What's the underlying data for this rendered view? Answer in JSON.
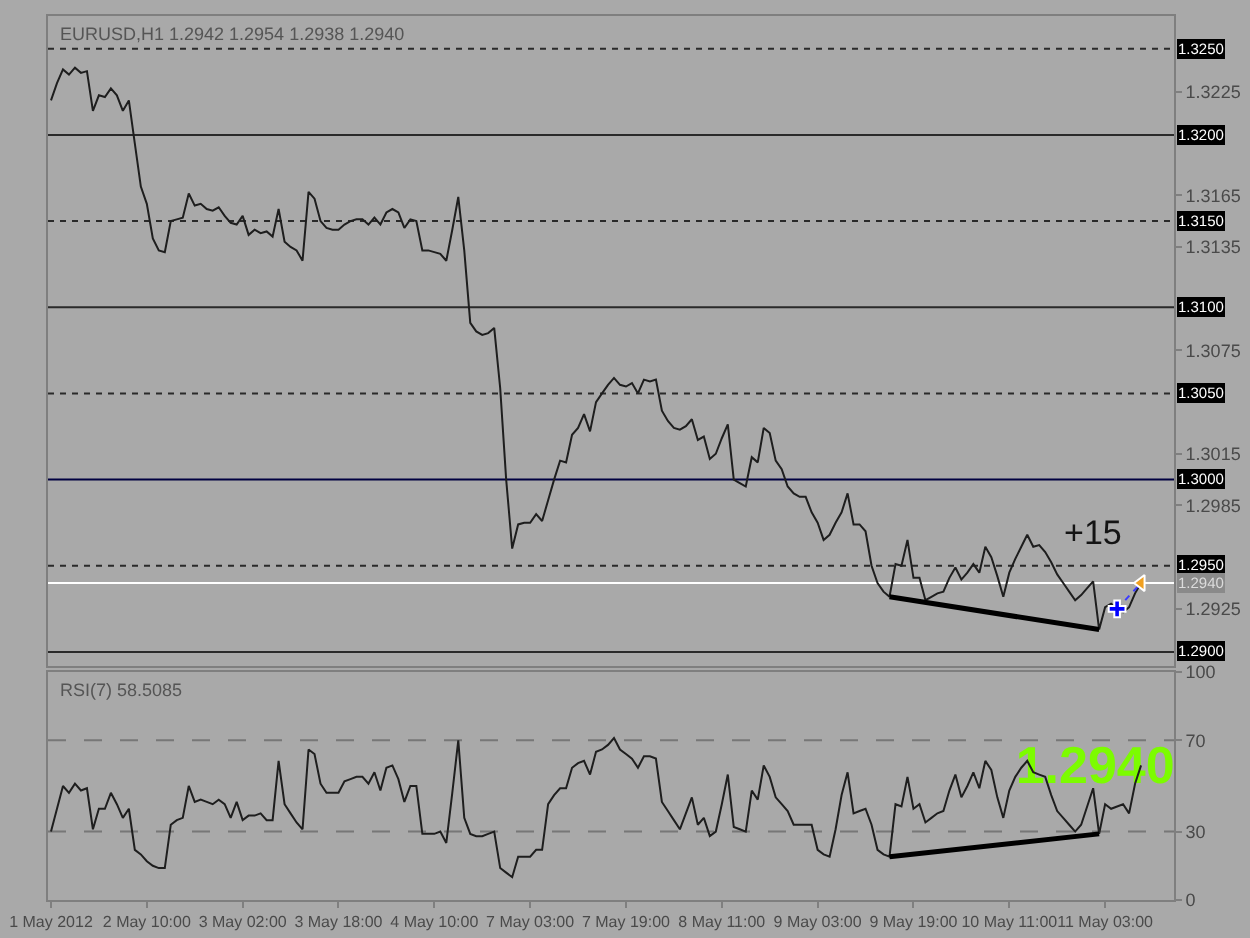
{
  "chart_data": [
    {
      "type": "line",
      "title": "EURUSD,H1 1.2942 1.2954 1.2938 1.2940",
      "ylim": [
        1.2892,
        1.3269
      ],
      "yticks": [
        1.3225,
        1.3165,
        1.3135,
        1.3075,
        1.3015,
        1.2985,
        1.2925
      ],
      "tick_labels": "y",
      "categories": [
        null,
        null,
        null,
        null,
        null,
        null,
        null,
        null,
        null,
        null,
        null,
        null,
        null,
        null,
        null,
        null,
        null,
        null,
        null,
        null,
        null,
        null,
        null,
        null,
        null,
        null,
        null,
        null,
        null,
        null,
        null,
        null,
        null,
        null,
        null,
        null,
        null,
        null,
        null,
        null,
        null,
        null,
        null,
        null,
        null,
        null,
        null,
        null,
        null,
        null,
        null,
        null,
        null,
        null,
        null,
        null,
        null,
        null,
        null,
        null,
        null,
        null,
        null,
        null,
        null,
        null,
        null,
        null,
        null,
        null,
        null,
        null,
        null,
        null,
        null,
        null,
        null,
        null,
        null,
        null,
        null,
        null,
        null,
        null,
        null,
        null,
        null,
        null,
        null,
        null,
        null,
        null,
        null,
        null,
        null,
        null,
        null,
        null,
        null,
        null,
        null,
        null,
        null,
        null,
        null,
        null,
        null,
        null,
        null,
        null,
        null,
        null,
        null,
        null,
        null,
        null,
        null,
        null,
        null,
        null,
        null,
        null,
        null,
        null,
        null,
        null,
        null,
        null,
        null,
        null,
        null,
        null,
        null,
        null,
        null,
        null,
        null,
        null,
        null,
        null,
        null,
        null,
        null,
        null,
        null,
        null,
        null,
        null,
        null,
        null,
        null,
        null,
        null,
        null,
        null,
        null,
        null,
        null,
        null,
        null,
        null,
        null,
        null,
        null,
        null,
        null,
        null,
        null,
        null,
        null,
        null,
        null,
        null,
        null,
        null,
        null,
        null,
        null,
        null,
        null,
        null,
        null,
        null,
        null,
        null,
        null,
        null,
        null
      ],
      "series": [
        {
          "color": "#1e1e1e",
          "values": [
            1.322,
            1.323,
            1.3238,
            1.3235,
            1.3239,
            1.3236,
            1.3237,
            1.3214,
            1.3223,
            1.3222,
            1.3227,
            1.3223,
            1.3214,
            1.322,
            1.3195,
            1.317,
            1.316,
            1.314,
            1.3133,
            1.3132,
            1.315,
            1.3151,
            1.3152,
            1.3166,
            1.3159,
            1.316,
            1.3157,
            1.3156,
            1.3158,
            1.3153,
            1.3149,
            1.3148,
            1.3153,
            1.3142,
            1.3145,
            1.3143,
            1.3144,
            1.3141,
            1.3157,
            1.3138,
            1.3135,
            1.3133,
            1.3127,
            1.3167,
            1.3163,
            1.315,
            1.3146,
            1.3145,
            1.3145,
            1.3148,
            1.315,
            1.3151,
            1.3151,
            1.3148,
            1.3152,
            1.3148,
            1.3155,
            1.3157,
            1.3155,
            1.3146,
            1.3151,
            1.315,
            1.3133,
            1.3133,
            1.3132,
            1.3131,
            1.3127,
            1.3145,
            1.3164,
            1.3133,
            1.3091,
            1.3086,
            1.3084,
            1.3085,
            1.3088,
            1.3053,
            1.3,
            1.296,
            1.2974,
            1.2975,
            1.2975,
            1.298,
            1.2976,
            1.2988,
            1.3,
            1.3011,
            1.301,
            1.3026,
            1.303,
            1.3038,
            1.3028,
            1.3045,
            1.305,
            1.3055,
            1.3059,
            1.3055,
            1.3054,
            1.3056,
            1.305,
            1.3058,
            1.3057,
            1.3058,
            1.304,
            1.3034,
            1.303,
            1.3029,
            1.3031,
            1.3035,
            1.3023,
            1.3025,
            1.3012,
            1.3015,
            1.3024,
            1.3032,
            1.3,
            1.2998,
            1.2996,
            1.3013,
            1.301,
            1.303,
            1.3027,
            1.3011,
            1.3006,
            1.2996,
            1.2992,
            1.299,
            1.299,
            1.2981,
            1.2975,
            1.2965,
            1.2968,
            1.2975,
            1.2981,
            1.2992,
            1.2974,
            1.2974,
            1.297,
            1.295,
            1.294,
            1.2935,
            1.2932,
            1.2951,
            1.295,
            1.2965,
            1.2943,
            1.2943,
            1.293,
            1.2932,
            1.2934,
            1.2935,
            1.2943,
            1.2949,
            1.2942,
            1.2946,
            1.2951,
            1.2946,
            1.2961,
            1.2955,
            1.2944,
            1.2932,
            1.2946,
            1.2954,
            1.2961,
            1.2968,
            1.2961,
            1.2962,
            1.2958,
            1.2952,
            1.2945,
            1.294,
            1.2935,
            1.293,
            1.2933,
            1.2937,
            1.2941,
            1.2913,
            1.2926,
            1.2928,
            1.2925,
            1.2923,
            1.2926,
            1.2934,
            1.294,
            null,
            null,
            null,
            null,
            null
          ]
        },
        {
          "type": "line",
          "color": "#000000",
          "values": [
            null,
            null,
            null,
            null,
            null,
            null,
            null,
            null,
            null,
            null,
            null,
            null,
            null,
            null,
            null,
            null,
            null,
            null,
            null,
            null,
            null,
            null,
            null,
            null,
            null,
            null,
            null,
            null,
            null,
            null,
            null,
            null,
            null,
            null,
            null,
            null,
            null,
            null,
            null,
            null,
            null,
            null,
            null,
            null,
            null,
            null,
            null,
            null,
            null,
            null,
            null,
            null,
            null,
            null,
            null,
            null,
            null,
            null,
            null,
            null,
            null,
            null,
            null,
            null,
            null,
            null,
            null,
            null,
            null,
            null,
            null,
            null,
            null,
            null,
            null,
            null,
            null,
            null,
            null,
            null,
            null,
            null,
            null,
            null,
            null,
            null,
            null,
            null,
            null,
            null,
            null,
            null,
            null,
            null,
            null,
            null,
            null,
            null,
            null,
            null,
            null,
            null,
            null,
            null,
            null,
            null,
            null,
            null,
            null,
            null,
            null,
            null,
            null,
            null,
            null,
            null,
            null,
            null,
            null,
            null,
            null,
            null,
            null,
            null,
            null,
            null,
            null,
            null,
            null,
            null,
            null,
            null,
            null,
            null,
            null,
            null,
            null,
            null,
            null,
            null,
            1.2932,
            null,
            null,
            null,
            null,
            null,
            null,
            null,
            null,
            null,
            null,
            null,
            null,
            null,
            null,
            null,
            null,
            null,
            null,
            null,
            null,
            null,
            null,
            null,
            null,
            null,
            null,
            null,
            null,
            null,
            null,
            null,
            null,
            null,
            null,
            1.2913,
            null,
            null,
            null,
            null,
            null,
            null,
            null,
            null,
            null,
            null,
            null,
            null
          ]
        },
        {
          "type": "line",
          "line_style": "dotted",
          "color": "#3c3cff",
          "values": [
            null,
            null,
            null,
            null,
            null,
            null,
            null,
            null,
            null,
            null,
            null,
            null,
            null,
            null,
            null,
            null,
            null,
            null,
            null,
            null,
            null,
            null,
            null,
            null,
            null,
            null,
            null,
            null,
            null,
            null,
            null,
            null,
            null,
            null,
            null,
            null,
            null,
            null,
            null,
            null,
            null,
            null,
            null,
            null,
            null,
            null,
            null,
            null,
            null,
            null,
            null,
            null,
            null,
            null,
            null,
            null,
            null,
            null,
            null,
            null,
            null,
            null,
            null,
            null,
            null,
            null,
            null,
            null,
            null,
            null,
            null,
            null,
            null,
            null,
            null,
            null,
            null,
            null,
            null,
            null,
            null,
            null,
            null,
            null,
            null,
            null,
            null,
            null,
            null,
            null,
            null,
            null,
            null,
            null,
            null,
            null,
            null,
            null,
            null,
            null,
            null,
            null,
            null,
            null,
            null,
            null,
            null,
            null,
            null,
            null,
            null,
            null,
            null,
            null,
            null,
            null,
            null,
            null,
            null,
            null,
            null,
            null,
            null,
            null,
            null,
            null,
            null,
            null,
            null,
            null,
            null,
            null,
            null,
            null,
            null,
            null,
            null,
            null,
            null,
            null,
            null,
            null,
            null,
            null,
            null,
            null,
            null,
            null,
            null,
            null,
            null,
            null,
            null,
            null,
            null,
            null,
            null,
            null,
            null,
            null,
            null,
            null,
            null,
            null,
            null,
            null,
            null,
            null,
            null,
            null,
            null,
            null,
            null,
            null,
            null,
            null,
            null,
            null,
            1.2925,
            null,
            null,
            null,
            1.294,
            null,
            null,
            null,
            null,
            null
          ]
        },
        {
          "type": "scatter",
          "marker": "cross",
          "color": "#0000ff",
          "values": [
            null,
            null,
            null,
            null,
            null,
            null,
            null,
            null,
            null,
            null,
            null,
            null,
            null,
            null,
            null,
            null,
            null,
            null,
            null,
            null,
            null,
            null,
            null,
            null,
            null,
            null,
            null,
            null,
            null,
            null,
            null,
            null,
            null,
            null,
            null,
            null,
            null,
            null,
            null,
            null,
            null,
            null,
            null,
            null,
            null,
            null,
            null,
            null,
            null,
            null,
            null,
            null,
            null,
            null,
            null,
            null,
            null,
            null,
            null,
            null,
            null,
            null,
            null,
            null,
            null,
            null,
            null,
            null,
            null,
            null,
            null,
            null,
            null,
            null,
            null,
            null,
            null,
            null,
            null,
            null,
            null,
            null,
            null,
            null,
            null,
            null,
            null,
            null,
            null,
            null,
            null,
            null,
            null,
            null,
            null,
            null,
            null,
            null,
            null,
            null,
            null,
            null,
            null,
            null,
            null,
            null,
            null,
            null,
            null,
            null,
            null,
            null,
            null,
            null,
            null,
            null,
            null,
            null,
            null,
            null,
            null,
            null,
            null,
            null,
            null,
            null,
            null,
            null,
            null,
            null,
            null,
            null,
            null,
            null,
            null,
            null,
            null,
            null,
            null,
            null,
            null,
            null,
            null,
            null,
            null,
            null,
            null,
            null,
            null,
            null,
            null,
            null,
            null,
            null,
            null,
            null,
            null,
            null,
            null,
            null,
            null,
            null,
            null,
            null,
            null,
            null,
            null,
            null,
            null,
            null,
            null,
            null,
            null,
            null,
            null,
            null,
            null,
            null,
            1.2925,
            null,
            null,
            null,
            null,
            null,
            null,
            null,
            null,
            null
          ]
        },
        {
          "type": "scatter",
          "marker": "triangle",
          "color": "#f0a020",
          "values": [
            null,
            null,
            null,
            null,
            null,
            null,
            null,
            null,
            null,
            null,
            null,
            null,
            null,
            null,
            null,
            null,
            null,
            null,
            null,
            null,
            null,
            null,
            null,
            null,
            null,
            null,
            null,
            null,
            null,
            null,
            null,
            null,
            null,
            null,
            null,
            null,
            null,
            null,
            null,
            null,
            null,
            null,
            null,
            null,
            null,
            null,
            null,
            null,
            null,
            null,
            null,
            null,
            null,
            null,
            null,
            null,
            null,
            null,
            null,
            null,
            null,
            null,
            null,
            null,
            null,
            null,
            null,
            null,
            null,
            null,
            null,
            null,
            null,
            null,
            null,
            null,
            null,
            null,
            null,
            null,
            null,
            null,
            null,
            null,
            null,
            null,
            null,
            null,
            null,
            null,
            null,
            null,
            null,
            null,
            null,
            null,
            null,
            null,
            null,
            null,
            null,
            null,
            null,
            null,
            null,
            null,
            null,
            null,
            null,
            null,
            null,
            null,
            null,
            null,
            null,
            null,
            null,
            null,
            null,
            null,
            null,
            null,
            null,
            null,
            null,
            null,
            null,
            null,
            null,
            null,
            null,
            null,
            null,
            null,
            null,
            null,
            null,
            null,
            null,
            null,
            null,
            null,
            null,
            null,
            null,
            null,
            null,
            null,
            null,
            null,
            null,
            null,
            null,
            null,
            null,
            null,
            null,
            null,
            null,
            null,
            null,
            null,
            null,
            null,
            null,
            null,
            null,
            null,
            null,
            null,
            null,
            null,
            null,
            null,
            null,
            null,
            null,
            null,
            null,
            null,
            null,
            null,
            1.294,
            null,
            null,
            null,
            null,
            null
          ]
        }
      ],
      "ref_lines": [
        {
          "axis": "y",
          "value": 1.325,
          "label": "1.3250",
          "color": "#2a2a2a",
          "line_style": "dotted"
        },
        {
          "axis": "y",
          "value": 1.32,
          "label": "1.3200",
          "color": "#2a2a2a",
          "line_style": "solid"
        },
        {
          "axis": "y",
          "value": 1.315,
          "label": "1.3150",
          "color": "#2a2a2a",
          "line_style": "dotted"
        },
        {
          "axis": "y",
          "value": 1.31,
          "label": "1.3100",
          "color": "#2a2a2a",
          "line_style": "solid"
        },
        {
          "axis": "y",
          "value": 1.305,
          "label": "1.3050",
          "color": "#2a2a2a",
          "line_style": "dotted"
        },
        {
          "axis": "y",
          "value": 1.3,
          "label": "1.3000",
          "color": "#000040",
          "line_style": "solid"
        },
        {
          "axis": "y",
          "value": 1.295,
          "label": "1.2950",
          "color": "#2a2a2a",
          "line_style": "dotted"
        },
        {
          "axis": "y",
          "value": 1.294,
          "label": "1.2940",
          "color": "#ffffff",
          "line_style": "solid"
        },
        {
          "axis": "y",
          "value": 1.29,
          "label": "1.2900",
          "color": "#2a2a2a",
          "line_style": "solid"
        }
      ],
      "annotations": [
        "+15"
      ]
    },
    {
      "type": "line",
      "title": "RSI(7) 58.5085",
      "ylim": [
        0,
        100
      ],
      "yticks": [
        0,
        30,
        70,
        100
      ],
      "categories": [
        "1 May 2012",
        null,
        null,
        null,
        null,
        null,
        null,
        null,
        null,
        null,
        null,
        null,
        null,
        null,
        null,
        null,
        "2 May 10:00",
        null,
        null,
        null,
        null,
        null,
        null,
        null,
        null,
        null,
        null,
        null,
        null,
        null,
        null,
        null,
        "3 May 02:00",
        null,
        null,
        null,
        null,
        null,
        null,
        null,
        null,
        null,
        null,
        null,
        null,
        null,
        null,
        null,
        "3 May 18:00",
        null,
        null,
        null,
        null,
        null,
        null,
        null,
        null,
        null,
        null,
        null,
        null,
        null,
        null,
        null,
        "4 May 10:00",
        null,
        null,
        null,
        null,
        null,
        null,
        null,
        null,
        null,
        null,
        null,
        null,
        null,
        null,
        null,
        "7 May 03:00",
        null,
        null,
        null,
        null,
        null,
        null,
        null,
        null,
        null,
        null,
        null,
        null,
        null,
        null,
        null,
        "7 May 19:00",
        null,
        null,
        null,
        null,
        null,
        null,
        null,
        null,
        null,
        null,
        null,
        null,
        null,
        null,
        null,
        "8 May 11:00",
        null,
        null,
        null,
        null,
        null,
        null,
        null,
        null,
        null,
        null,
        null,
        null,
        null,
        null,
        null,
        "9 May 03:00",
        null,
        null,
        null,
        null,
        null,
        null,
        null,
        null,
        null,
        null,
        null,
        null,
        null,
        null,
        null,
        "9 May 19:00",
        null,
        null,
        null,
        null,
        null,
        null,
        null,
        null,
        null,
        null,
        null,
        null,
        null,
        null,
        null,
        "10 May 11:00",
        null,
        null,
        null,
        null,
        null,
        null,
        null,
        null,
        null,
        null,
        null,
        null,
        null,
        null,
        null,
        "11 May 03:00",
        null,
        null,
        null,
        null,
        null,
        null,
        null,
        null,
        null,
        null,
        null
      ],
      "series": [
        {
          "color": "#1e1e1e",
          "values": [
            30,
            40,
            50,
            47,
            51,
            48,
            49,
            31,
            40,
            40,
            47,
            42,
            36,
            40,
            22,
            20,
            17,
            15,
            14,
            14,
            33,
            35,
            36,
            50,
            43,
            44,
            43,
            42,
            44,
            42,
            36,
            43,
            35,
            37,
            37,
            38,
            35,
            35,
            61,
            42,
            38,
            34,
            31,
            66,
            64,
            51,
            47,
            47,
            47,
            52,
            53,
            54,
            54,
            51,
            56,
            48,
            58,
            59,
            53,
            43,
            50,
            50,
            29,
            29,
            29,
            30,
            25,
            47,
            70,
            36,
            29,
            28,
            28,
            29,
            30,
            14,
            12,
            10,
            19,
            19,
            19,
            22,
            22,
            42,
            46,
            49,
            49,
            58,
            60,
            61,
            55,
            65,
            66,
            68,
            71,
            66,
            64,
            62,
            58,
            63,
            63,
            62,
            43,
            39,
            35,
            31,
            38,
            45,
            33,
            36,
            28,
            30,
            42,
            55,
            32,
            31,
            30,
            48,
            44,
            59,
            54,
            45,
            42,
            39,
            33,
            33,
            33,
            33,
            22,
            20,
            19,
            31,
            46,
            56,
            38,
            39,
            40,
            33,
            22,
            20,
            19,
            42,
            41,
            54,
            40,
            42,
            34,
            36,
            38,
            39,
            48,
            55,
            45,
            50,
            56,
            49,
            61,
            57,
            45,
            36,
            48,
            54,
            58,
            61,
            56,
            55,
            54,
            46,
            39,
            36,
            33,
            30,
            33,
            41,
            49,
            29,
            42,
            40,
            41,
            42,
            38,
            51,
            59,
            null,
            null,
            null,
            null,
            null
          ]
        },
        {
          "type": "line",
          "color": "#000000",
          "values": [
            null,
            null,
            null,
            null,
            null,
            null,
            null,
            null,
            null,
            null,
            null,
            null,
            null,
            null,
            null,
            null,
            null,
            null,
            null,
            null,
            null,
            null,
            null,
            null,
            null,
            null,
            null,
            null,
            null,
            null,
            null,
            null,
            null,
            null,
            null,
            null,
            null,
            null,
            null,
            null,
            null,
            null,
            null,
            null,
            null,
            null,
            null,
            null,
            null,
            null,
            null,
            null,
            null,
            null,
            null,
            null,
            null,
            null,
            null,
            null,
            null,
            null,
            null,
            null,
            null,
            null,
            null,
            null,
            null,
            null,
            null,
            null,
            null,
            null,
            null,
            null,
            null,
            null,
            null,
            null,
            null,
            null,
            null,
            null,
            null,
            null,
            null,
            null,
            null,
            null,
            null,
            null,
            null,
            null,
            null,
            null,
            null,
            null,
            null,
            null,
            null,
            null,
            null,
            null,
            null,
            null,
            null,
            null,
            null,
            null,
            null,
            null,
            null,
            null,
            null,
            null,
            null,
            null,
            null,
            null,
            null,
            null,
            null,
            null,
            null,
            null,
            null,
            null,
            null,
            null,
            null,
            null,
            null,
            null,
            null,
            null,
            null,
            null,
            null,
            null,
            19,
            null,
            null,
            null,
            null,
            null,
            null,
            null,
            null,
            null,
            null,
            null,
            null,
            null,
            null,
            null,
            null,
            null,
            null,
            null,
            null,
            null,
            null,
            null,
            null,
            null,
            null,
            null,
            null,
            null,
            null,
            null,
            null,
            null,
            null,
            29,
            null,
            null,
            null,
            null,
            null,
            null,
            null,
            null,
            null,
            null,
            null,
            null
          ]
        }
      ],
      "ref_lines": [
        {
          "axis": "y",
          "value": 70,
          "color": "#777777",
          "line_style": "dashed"
        },
        {
          "axis": "y",
          "value": 30,
          "color": "#777777",
          "line_style": "dashed"
        }
      ],
      "annotations": [
        "1.2940"
      ]
    }
  ]
}
